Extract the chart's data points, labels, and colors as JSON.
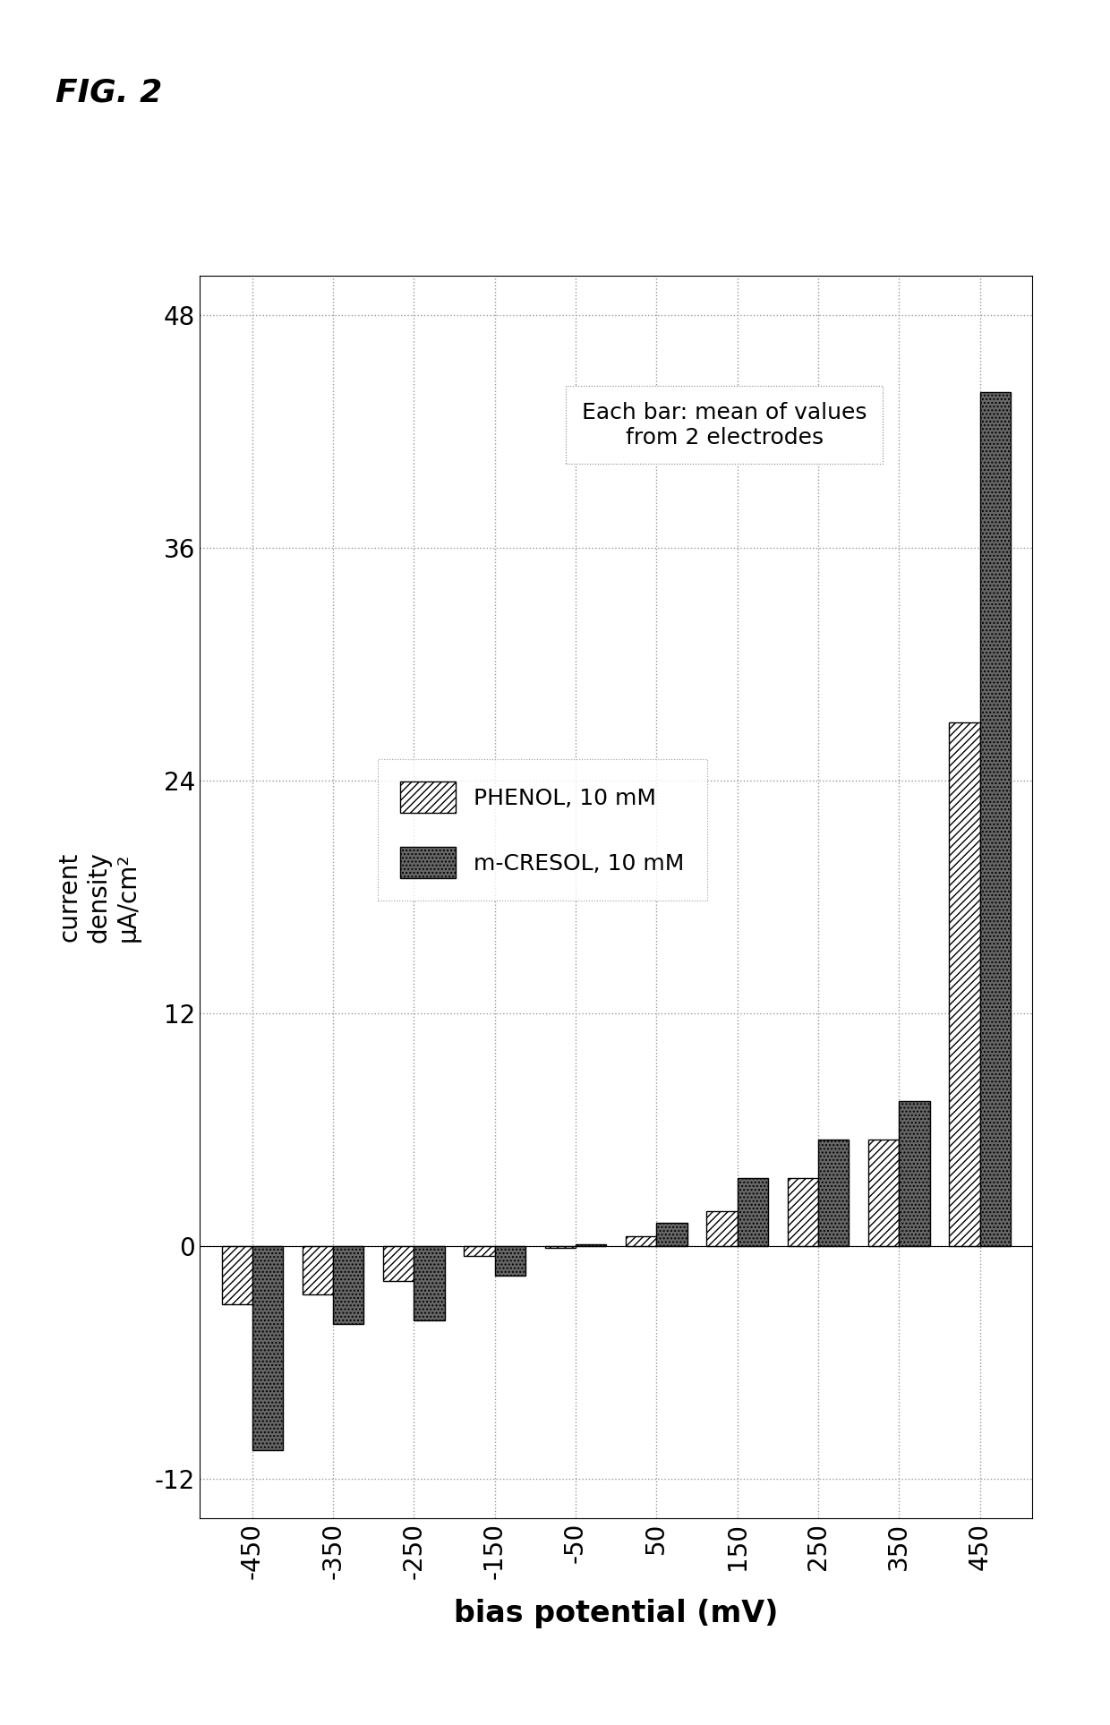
{
  "categories": [
    -450,
    -350,
    -250,
    -150,
    -50,
    50,
    150,
    250,
    350,
    450
  ],
  "phenol": [
    -3.0,
    -2.5,
    -1.8,
    -0.5,
    -0.1,
    0.5,
    1.8,
    3.5,
    5.5,
    27.0
  ],
  "mcresol": [
    -10.5,
    -4.0,
    -3.8,
    -1.5,
    0.1,
    1.2,
    3.5,
    5.5,
    7.5,
    44.0
  ],
  "ylabel": "current\ndensity\nμA/cm²",
  "xlabel": "bias potential (mV)",
  "ylim": [
    -14,
    50
  ],
  "yticks": [
    -12,
    0,
    12,
    24,
    36,
    48
  ],
  "title": "FIG. 2",
  "annotation": "Each bar: mean of values\nfrom 2 electrodes",
  "legend_phenol": "PHENOL, 10 mM",
  "legend_mcresol": "m-CRESOL, 10 mM",
  "bar_width": 0.38,
  "phenol_hatch": "////",
  "mcresol_hatch": "....",
  "phenol_color": "#ffffff",
  "mcresol_color": "#666666",
  "phenol_edge": "#000000",
  "mcresol_edge": "#000000",
  "background_color": "#ffffff",
  "grid_color": "#999999",
  "fig_width": 12.4,
  "fig_height": 19.27
}
